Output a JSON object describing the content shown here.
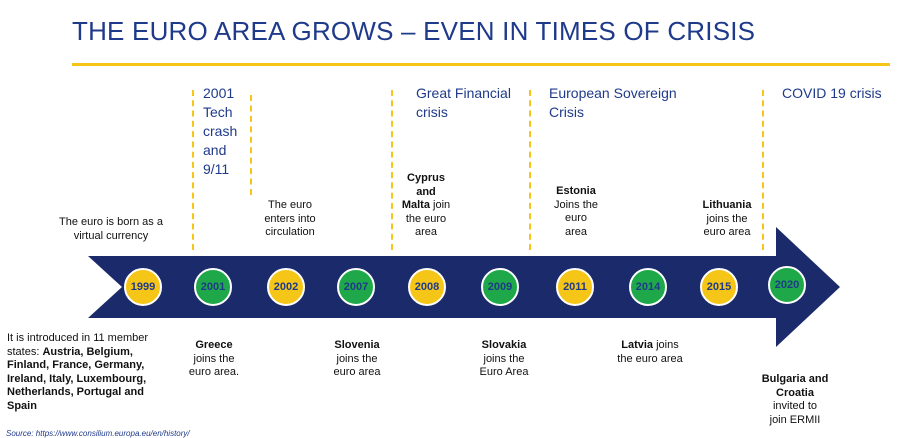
{
  "title": "THE EURO AREA GROWS – EVEN IN TIMES OF CRISIS",
  "colors": {
    "navy": "#1b2a6b",
    "yellow": "#f5c518",
    "green": "#1ea84a",
    "title": "#1f3a8a"
  },
  "crises": [
    {
      "lines": [
        "2001",
        "Tech",
        "crash",
        "and",
        "9/11"
      ]
    },
    {
      "lines": [
        "Great Financial",
        "crisis"
      ]
    },
    {
      "lines": [
        "European Sovereign",
        "Crisis"
      ]
    },
    {
      "lines": [
        "COVID 19 crisis"
      ]
    }
  ],
  "years": [
    {
      "label": "1999",
      "color": "yellow"
    },
    {
      "label": "2001",
      "color": "green"
    },
    {
      "label": "2002",
      "color": "yellow"
    },
    {
      "label": "2007",
      "color": "green"
    },
    {
      "label": "2008",
      "color": "yellow"
    },
    {
      "label": "2009",
      "color": "green"
    },
    {
      "label": "2011",
      "color": "yellow"
    },
    {
      "label": "2014",
      "color": "green"
    },
    {
      "label": "2015",
      "color": "yellow"
    },
    {
      "label": "2020",
      "color": "green"
    }
  ],
  "events_above": [
    {
      "lines": [
        [
          "The euro is born as a"
        ],
        [
          "virtual currency"
        ]
      ]
    },
    {
      "lines": [
        [
          "The euro"
        ],
        [
          "enters into"
        ],
        [
          "circulation"
        ]
      ]
    },
    {
      "lines": [
        [
          "*Cyprus"
        ],
        [
          "*and"
        ],
        [
          "*Malta",
          " join"
        ],
        [
          "the euro"
        ],
        [
          "area"
        ]
      ]
    },
    {
      "lines": [
        [
          "*Estonia"
        ],
        [
          "Joins the"
        ],
        [
          "euro"
        ],
        [
          "area"
        ]
      ]
    },
    {
      "lines": [
        [
          "*Lithuania"
        ],
        [
          "joins the"
        ],
        [
          "euro area"
        ]
      ]
    }
  ],
  "events_below": [
    {
      "lines": [
        [
          "It is introduced in 11 member"
        ],
        [
          "states: ",
          "*Austria, Belgium,"
        ],
        [
          "*Finland, France, Germany,"
        ],
        [
          "*Ireland, Italy, Luxembourg,"
        ],
        [
          "*Netherlands, Portugal and"
        ],
        [
          "*Spain"
        ]
      ]
    },
    {
      "lines": [
        [
          "*Greece"
        ],
        [
          "joins the"
        ],
        [
          "euro area."
        ]
      ]
    },
    {
      "lines": [
        [
          "*Slovenia"
        ],
        [
          "joins the"
        ],
        [
          "euro area"
        ]
      ]
    },
    {
      "lines": [
        [
          "*Slovakia"
        ],
        [
          "joins the"
        ],
        [
          "Euro Area"
        ]
      ]
    },
    {
      "lines": [
        [
          "*Latvia",
          " joins"
        ],
        [
          "the euro area"
        ]
      ]
    },
    {
      "lines": [
        [
          "*Bulgaria and"
        ],
        [
          "*Croatia"
        ],
        [
          "invited to"
        ],
        [
          "join ERMII"
        ]
      ]
    }
  ],
  "source": "Source: https://www.consilium.europa.eu/en/history/"
}
